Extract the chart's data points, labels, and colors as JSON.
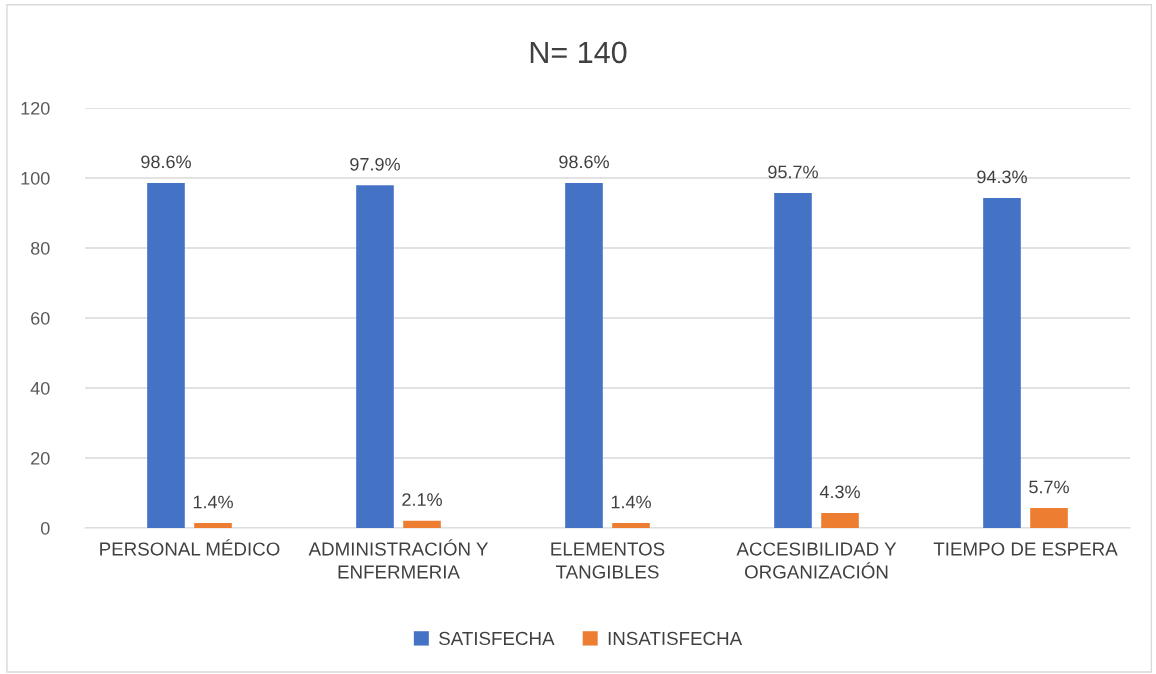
{
  "chart_data": {
    "type": "bar",
    "title": "N= 140",
    "categories": [
      "PERSONAL MÉDICO",
      "ADMINISTRACIÓN Y\nENFERMERIA",
      "ELEMENTOS\nTANGIBLES",
      "ACCESIBILIDAD Y\nORGANIZACIÓN",
      "TIEMPO DE ESPERA"
    ],
    "series": [
      {
        "name": "SATISFECHA",
        "color": "#4472c4",
        "values": [
          98.6,
          97.9,
          98.6,
          95.7,
          94.3
        ],
        "value_labels": [
          "98.6%",
          "97.9%",
          "98.6%",
          "95.7%",
          "94.3%"
        ]
      },
      {
        "name": "INSATISFECHA",
        "color": "#ed7d31",
        "values": [
          1.4,
          2.1,
          1.4,
          4.3,
          5.7
        ],
        "value_labels": [
          "1.4%",
          "2.1%",
          "1.4%",
          "4.3%",
          "5.7%"
        ]
      }
    ],
    "ylim": [
      0,
      120
    ],
    "yticks": [
      0,
      20,
      40,
      60,
      80,
      100,
      120
    ],
    "grid": "y",
    "legend": "bottom"
  }
}
